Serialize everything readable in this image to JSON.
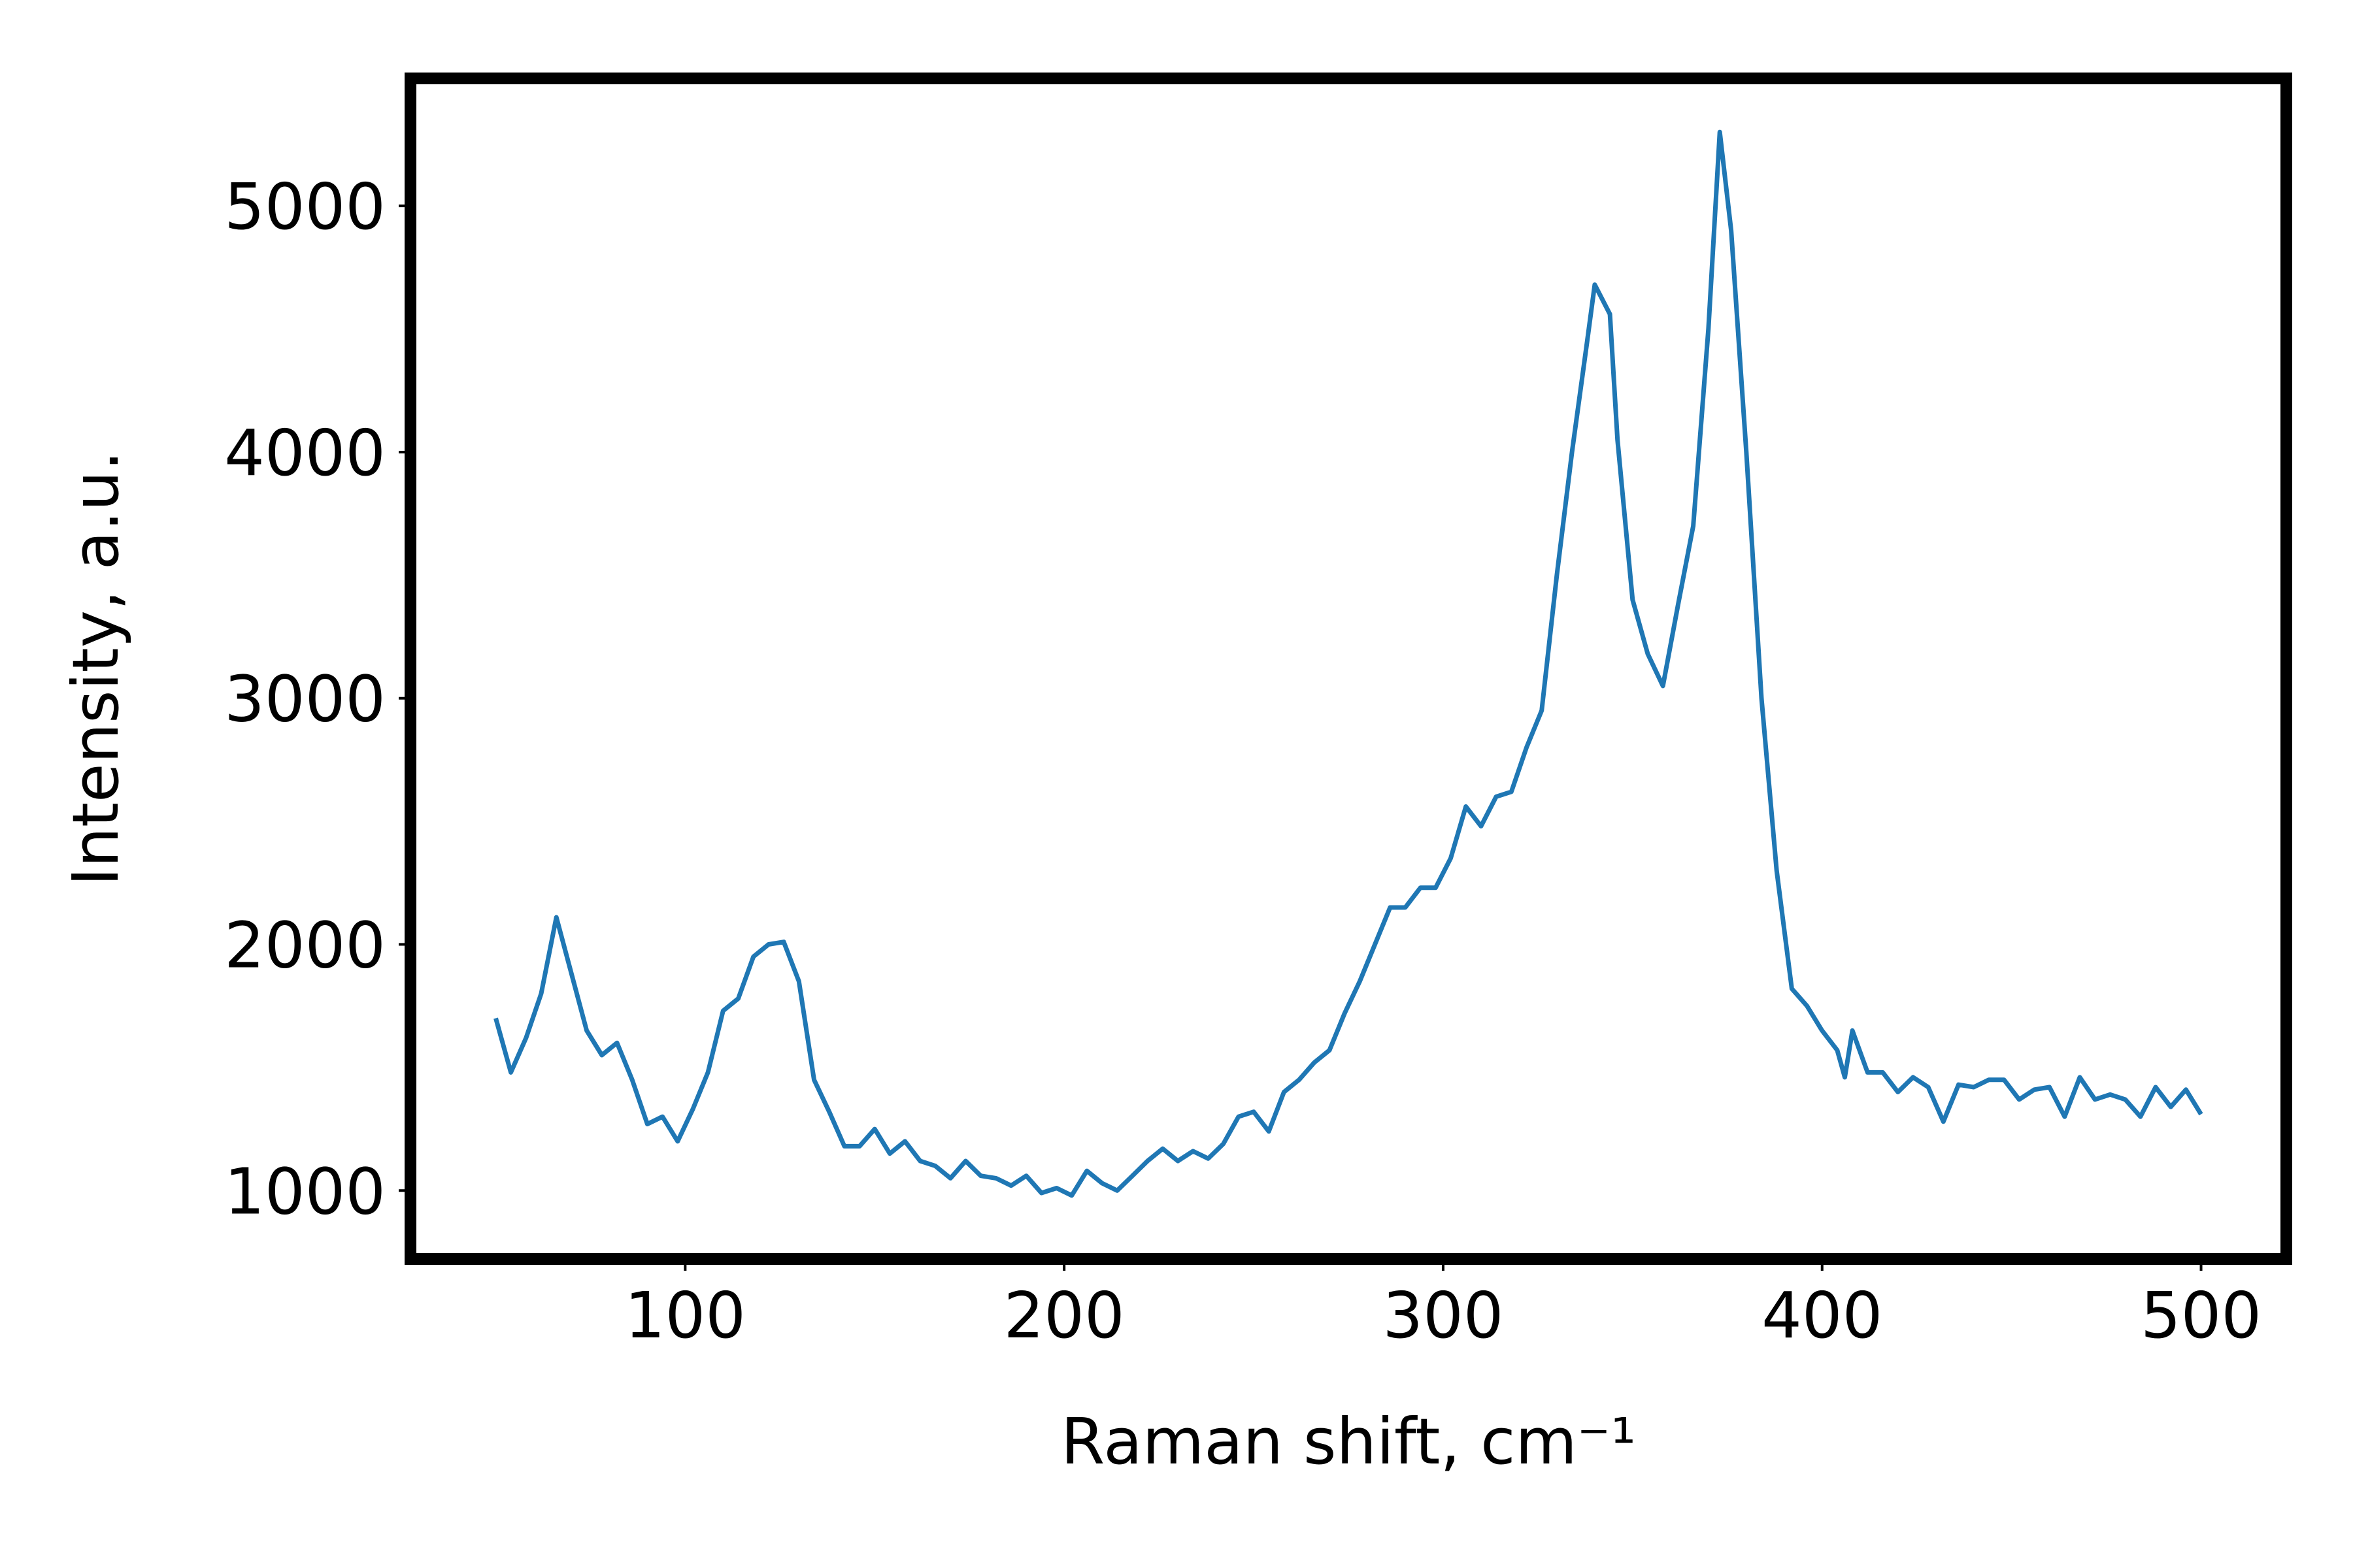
{
  "chart_data": {
    "type": "line",
    "x_label": "Raman shift, cm⁻¹",
    "y_label": "Intensity, a.u.",
    "xlim": [
      27.5,
      522.5
    ],
    "xticks": [
      100,
      200,
      300,
      400,
      500
    ],
    "ylim": [
      722,
      5518
    ],
    "yticks": [
      1000,
      2000,
      3000,
      4000,
      5000
    ],
    "grid": false,
    "series": [
      {
        "color": "#1f77b4",
        "x": [
          50,
          54,
          58,
          62,
          66,
          70,
          74,
          78,
          82,
          86,
          90,
          94,
          98,
          102,
          106,
          110,
          114,
          118,
          122,
          126,
          130,
          134,
          138,
          142,
          146,
          150,
          154,
          158,
          162,
          166,
          170,
          174,
          178,
          182,
          186,
          190,
          194,
          198,
          202,
          206,
          210,
          214,
          218,
          222,
          226,
          230,
          234,
          238,
          242,
          246,
          250,
          254,
          258,
          262,
          266,
          270,
          274,
          278,
          282,
          286,
          290,
          294,
          298,
          302,
          306,
          310,
          314,
          318,
          322,
          326,
          330,
          334,
          338,
          340,
          344,
          346,
          350,
          354,
          358,
          362,
          366,
          370,
          373,
          376,
          380,
          384,
          388,
          392,
          396,
          400,
          404,
          406,
          408,
          412,
          416,
          420,
          424,
          428,
          432,
          436,
          440,
          444,
          448,
          452,
          456,
          460,
          464,
          468,
          472,
          476,
          480,
          484,
          488,
          492,
          496,
          500
        ],
        "values": [
          1700,
          1480,
          1620,
          1800,
          2110,
          1880,
          1650,
          1550,
          1600,
          1450,
          1270,
          1300,
          1200,
          1330,
          1480,
          1730,
          1780,
          1950,
          2000,
          2010,
          1850,
          1450,
          1320,
          1180,
          1180,
          1250,
          1150,
          1200,
          1120,
          1100,
          1050,
          1120,
          1060,
          1050,
          1020,
          1060,
          990,
          1010,
          980,
          1080,
          1030,
          1000,
          1060,
          1120,
          1170,
          1120,
          1160,
          1130,
          1190,
          1300,
          1320,
          1240,
          1400,
          1450,
          1520,
          1570,
          1720,
          1850,
          2000,
          2150,
          2150,
          2230,
          2230,
          2350,
          2560,
          2480,
          2600,
          2620,
          2800,
          2950,
          3500,
          4000,
          4450,
          4680,
          4560,
          4050,
          3400,
          3180,
          3050,
          3380,
          3700,
          4500,
          5300,
          4900,
          4000,
          3000,
          2300,
          1820,
          1750,
          1650,
          1570,
          1460,
          1650,
          1480,
          1480,
          1400,
          1460,
          1420,
          1280,
          1430,
          1420,
          1450,
          1450,
          1370,
          1410,
          1420,
          1300,
          1460,
          1370,
          1390,
          1370,
          1300,
          1420,
          1340,
          1410,
          1310
        ]
      }
    ]
  }
}
